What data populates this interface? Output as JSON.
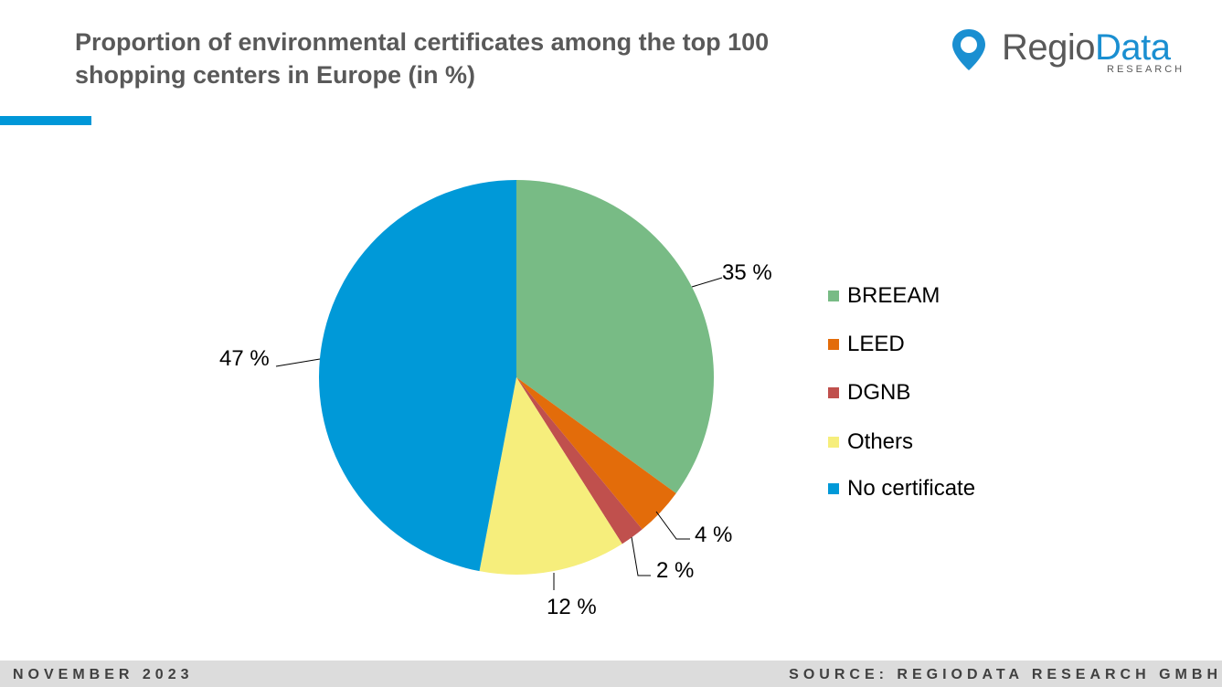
{
  "header": {
    "title_line1": "Proportion of environmental certificates among the top 100",
    "title_line2": "shopping centers in Europe (in %)"
  },
  "logo": {
    "name_part1": "Regio",
    "name_part2": "Data",
    "subtitle": "RESEARCH",
    "icon": "location-pin-icon"
  },
  "colors": {
    "accent": "#0097d8",
    "logo_blue": "#1a8fd1"
  },
  "chart_data": {
    "type": "pie",
    "title": "Proportion of environmental certificates among the top 100 shopping centers in Europe (in %)",
    "categories": [
      "BREEAM",
      "LEED",
      "DGNB",
      "Others",
      "No certificate"
    ],
    "values": [
      35,
      4,
      2,
      12,
      47
    ],
    "data_labels": [
      "35 %",
      "4 %",
      "2 %",
      "12 %",
      "47 %"
    ],
    "colors": [
      "#78bb85",
      "#e36c0a",
      "#c0504d",
      "#f6ee7c",
      "#0099d8"
    ],
    "legend_position": "right",
    "start_angle": "12 o'clock, clockwise"
  },
  "footer": {
    "date": "NOVEMBER 2023",
    "source": "SOURCE: REGIODATA RESEARCH GMBH"
  }
}
